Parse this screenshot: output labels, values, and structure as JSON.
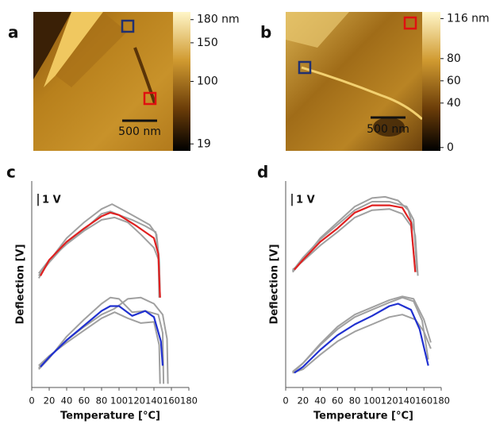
{
  "images": [
    {
      "label": "a",
      "scale_bar": "500 nm",
      "clim": [
        10,
        190
      ],
      "colorbar_ticks": [
        {
          "value": 180,
          "label": "180 nm"
        },
        150,
        100,
        19
      ]
    },
    {
      "label": "b",
      "scale_bar": "500 nm",
      "clim": [
        -3,
        122
      ],
      "colorbar_ticks": [
        {
          "value": 116,
          "label": "116 nm"
        },
        80,
        60,
        40,
        0
      ]
    }
  ],
  "chart_data": [
    {
      "type": "line",
      "label": "c",
      "x_label": "Temperature [°C]",
      "y_label": "Deflection [V]",
      "xlim": [
        0,
        180
      ],
      "xticks": [
        0,
        20,
        40,
        60,
        80,
        100,
        120,
        140,
        160,
        180
      ],
      "ylim": [
        0,
        17
      ],
      "scale_bar": {
        "value": 1,
        "label": "1 V"
      },
      "series": [
        {
          "color": "#a0a0a0",
          "x": [
            8,
            20,
            40,
            60,
            80,
            92,
            105,
            120,
            135,
            143,
            146,
            147
          ],
          "values": [
            9.0,
            10.4,
            12.3,
            13.6,
            14.7,
            15.1,
            14.6,
            14.0,
            13.4,
            12.6,
            10.5,
            7.4
          ]
        },
        {
          "color": "#a0a0a0",
          "x": [
            8,
            20,
            40,
            60,
            80,
            95,
            110,
            125,
            140,
            146,
            147
          ],
          "values": [
            9.4,
            10.5,
            11.8,
            12.9,
            13.8,
            14.0,
            13.6,
            12.6,
            11.5,
            10.4,
            7.4
          ]
        },
        {
          "color": "#a0a0a0",
          "x": [
            8,
            20,
            40,
            60,
            80,
            90,
            100,
            115,
            130,
            142,
            145,
            146
          ],
          "values": [
            9.2,
            10.3,
            11.9,
            13.0,
            14.3,
            14.5,
            14.2,
            13.8,
            13.3,
            12.8,
            11.0,
            7.4
          ]
        },
        {
          "color": "#e02020",
          "x": [
            10,
            20,
            40,
            60,
            80,
            90,
            100,
            120,
            140,
            145,
            147
          ],
          "values": [
            9.2,
            10.5,
            12.0,
            13.1,
            14.1,
            14.4,
            14.2,
            13.3,
            12.3,
            11.0,
            7.4
          ]
        },
        {
          "color": "#a0a0a0",
          "x": [
            8,
            20,
            40,
            60,
            80,
            90,
            100,
            115,
            130,
            145,
            150,
            151
          ],
          "values": [
            1.5,
            2.4,
            4.2,
            5.6,
            6.9,
            7.4,
            7.3,
            6.2,
            6.3,
            6.0,
            4.5,
            0.3
          ]
        },
        {
          "color": "#a0a0a0",
          "x": [
            8,
            20,
            40,
            60,
            80,
            95,
            110,
            125,
            140,
            150,
            155,
            156
          ],
          "values": [
            1.6,
            2.5,
            3.9,
            5.0,
            6.0,
            6.5,
            7.3,
            7.4,
            6.9,
            6.0,
            4.0,
            0.3
          ]
        },
        {
          "color": "#a0a0a0",
          "x": [
            8,
            20,
            40,
            60,
            80,
            95,
            110,
            125,
            140,
            146,
            147
          ],
          "values": [
            1.8,
            2.6,
            3.7,
            4.7,
            5.7,
            6.2,
            5.7,
            5.3,
            5.4,
            3.5,
            0.3
          ]
        },
        {
          "color": "#2030d0",
          "x": [
            10,
            20,
            40,
            60,
            80,
            90,
            100,
            115,
            130,
            140,
            148,
            150
          ],
          "values": [
            1.7,
            2.5,
            3.9,
            5.1,
            6.3,
            6.7,
            6.7,
            5.9,
            6.3,
            5.8,
            3.8,
            1.8
          ]
        }
      ]
    },
    {
      "type": "line",
      "label": "d",
      "x_label": "Temperature [°C]",
      "y_label": "Deflection [V]",
      "xlim": [
        0,
        180
      ],
      "xticks": [
        0,
        20,
        40,
        60,
        80,
        100,
        120,
        140,
        160,
        180
      ],
      "ylim": [
        0,
        17
      ],
      "scale_bar": {
        "value": 1,
        "label": "1 V"
      },
      "series": [
        {
          "color": "#a0a0a0",
          "x": [
            8,
            20,
            40,
            60,
            80,
            100,
            115,
            130,
            142,
            150,
            153
          ],
          "values": [
            9.5,
            10.5,
            12.3,
            13.6,
            14.9,
            15.6,
            15.7,
            15.4,
            14.6,
            12.5,
            9.2
          ]
        },
        {
          "color": "#a0a0a0",
          "x": [
            8,
            20,
            40,
            60,
            80,
            100,
            120,
            135,
            145,
            150
          ],
          "values": [
            9.7,
            10.4,
            11.7,
            12.8,
            14.0,
            14.6,
            14.7,
            14.3,
            13.3,
            9.8
          ]
        },
        {
          "color": "#a0a0a0",
          "x": [
            8,
            20,
            40,
            60,
            80,
            100,
            120,
            140,
            148,
            152
          ],
          "values": [
            9.6,
            10.7,
            12.2,
            13.4,
            14.6,
            15.3,
            15.3,
            14.9,
            13.8,
            9.5
          ]
        },
        {
          "color": "#e02020",
          "x": [
            10,
            20,
            40,
            60,
            80,
            100,
            120,
            135,
            145,
            150
          ],
          "values": [
            9.7,
            10.5,
            12.0,
            13.1,
            14.4,
            15.0,
            15.0,
            14.8,
            13.6,
            9.5
          ]
        },
        {
          "color": "#a0a0a0",
          "x": [
            8,
            20,
            40,
            60,
            80,
            100,
            120,
            135,
            148,
            160,
            168
          ],
          "values": [
            1.3,
            2.0,
            3.6,
            5.0,
            6.0,
            6.6,
            7.2,
            7.5,
            7.3,
            5.6,
            3.7
          ]
        },
        {
          "color": "#a0a0a0",
          "x": [
            8,
            20,
            40,
            60,
            80,
            100,
            120,
            135,
            150,
            160,
            168
          ],
          "values": [
            1.2,
            1.5,
            2.7,
            3.8,
            4.6,
            5.2,
            5.8,
            6.0,
            5.6,
            4.6,
            3.2
          ]
        },
        {
          "color": "#a0a0a0",
          "x": [
            8,
            20,
            40,
            60,
            80,
            100,
            120,
            135,
            148,
            158,
            165
          ],
          "values": [
            1.2,
            2.0,
            3.5,
            4.8,
            5.8,
            6.4,
            7.0,
            7.4,
            7.1,
            5.5,
            2.3
          ]
        },
        {
          "color": "#2030d0",
          "x": [
            10,
            20,
            40,
            60,
            80,
            100,
            120,
            130,
            145,
            155,
            165
          ],
          "values": [
            1.2,
            1.7,
            3.1,
            4.3,
            5.2,
            5.9,
            6.7,
            6.9,
            6.4,
            4.8,
            1.8
          ]
        }
      ]
    }
  ]
}
